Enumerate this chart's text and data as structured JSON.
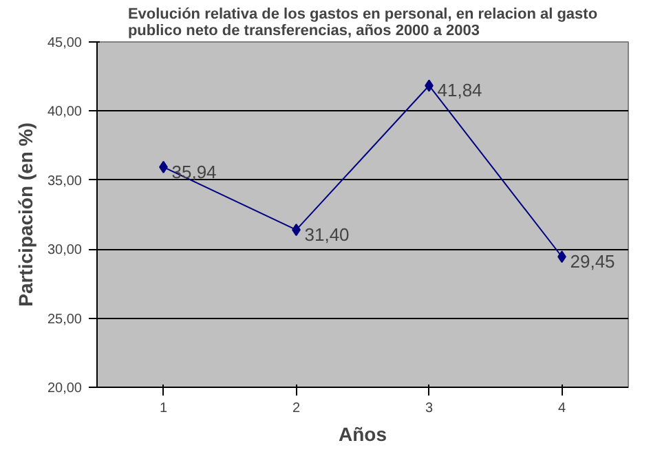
{
  "chart_data": {
    "type": "line",
    "title": "Evolución relativa de los gastos en personal, en relacion al gasto\npublico neto de transferencias, años 2000 a 2003",
    "xlabel": "Años",
    "ylabel": "Participación (en %)",
    "categories": [
      "1",
      "2",
      "3",
      "4"
    ],
    "series": [
      {
        "color": "#000080",
        "values": [
          35.94,
          31.4,
          41.84,
          29.45
        ],
        "value_labels": [
          "35,94",
          "31,40",
          "41,84",
          "29,45"
        ]
      }
    ],
    "ylim": [
      20,
      45
    ],
    "yticks": [
      {
        "value": 20,
        "label": "20,00"
      },
      {
        "value": 25,
        "label": "25,00"
      },
      {
        "value": 30,
        "label": "30,00"
      },
      {
        "value": 35,
        "label": "35,00"
      },
      {
        "value": 40,
        "label": "40,00"
      },
      {
        "value": 45,
        "label": "45,00"
      }
    ],
    "grid": "y",
    "marker": "diamond",
    "line_style": "solid"
  }
}
